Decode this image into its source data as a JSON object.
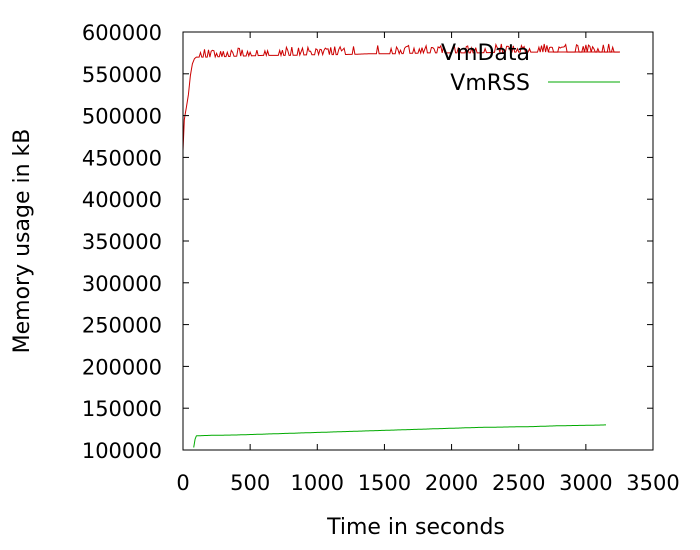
{
  "chart_data": {
    "type": "line",
    "title": "",
    "xlabel": "Time in seconds",
    "ylabel": "Memory usage in kB",
    "xlim": [
      0,
      3500
    ],
    "ylim": [
      100000,
      600000
    ],
    "xticks": [
      "0",
      "500",
      "1000",
      "1500",
      "2000",
      "2500",
      "3000",
      "3500"
    ],
    "yticks": [
      "100000",
      "150000",
      "200000",
      "250000",
      "300000",
      "350000",
      "400000",
      "450000",
      "500000",
      "550000",
      "600000"
    ],
    "grid": false,
    "legend_position": "top-right",
    "series": [
      {
        "name": "VmData",
        "color": "#cc0000",
        "points": [
          [
            0,
            458000
          ],
          [
            10,
            495000
          ],
          [
            25,
            510000
          ],
          [
            40,
            525000
          ],
          [
            55,
            548000
          ],
          [
            70,
            562000
          ],
          [
            85,
            568000
          ],
          [
            100,
            570000
          ],
          [
            200,
            570000
          ],
          [
            400,
            571000
          ],
          [
            600,
            572000
          ],
          [
            800,
            572000
          ],
          [
            1000,
            573000
          ],
          [
            1200,
            573000
          ],
          [
            1400,
            574000
          ],
          [
            1600,
            574000
          ],
          [
            1800,
            575000
          ],
          [
            2000,
            575000
          ],
          [
            2200,
            575000
          ],
          [
            2400,
            576000
          ],
          [
            2600,
            576000
          ],
          [
            2800,
            576000
          ],
          [
            3000,
            576000
          ],
          [
            3100,
            576000
          ],
          [
            3250,
            576000
          ]
        ],
        "spike_height": 10000
      },
      {
        "name": "VmRSS",
        "color": "#00aa00",
        "points": [
          [
            80,
            103000
          ],
          [
            90,
            113000
          ],
          [
            100,
            117000
          ],
          [
            200,
            117500
          ],
          [
            400,
            118000
          ],
          [
            600,
            119000
          ],
          [
            800,
            120000
          ],
          [
            1000,
            121000
          ],
          [
            1200,
            122000
          ],
          [
            1400,
            123000
          ],
          [
            1600,
            124000
          ],
          [
            1800,
            125000
          ],
          [
            2000,
            126000
          ],
          [
            2200,
            127000
          ],
          [
            2400,
            127500
          ],
          [
            2600,
            128000
          ],
          [
            2800,
            129000
          ],
          [
            3000,
            129500
          ],
          [
            3150,
            130000
          ]
        ]
      }
    ]
  }
}
